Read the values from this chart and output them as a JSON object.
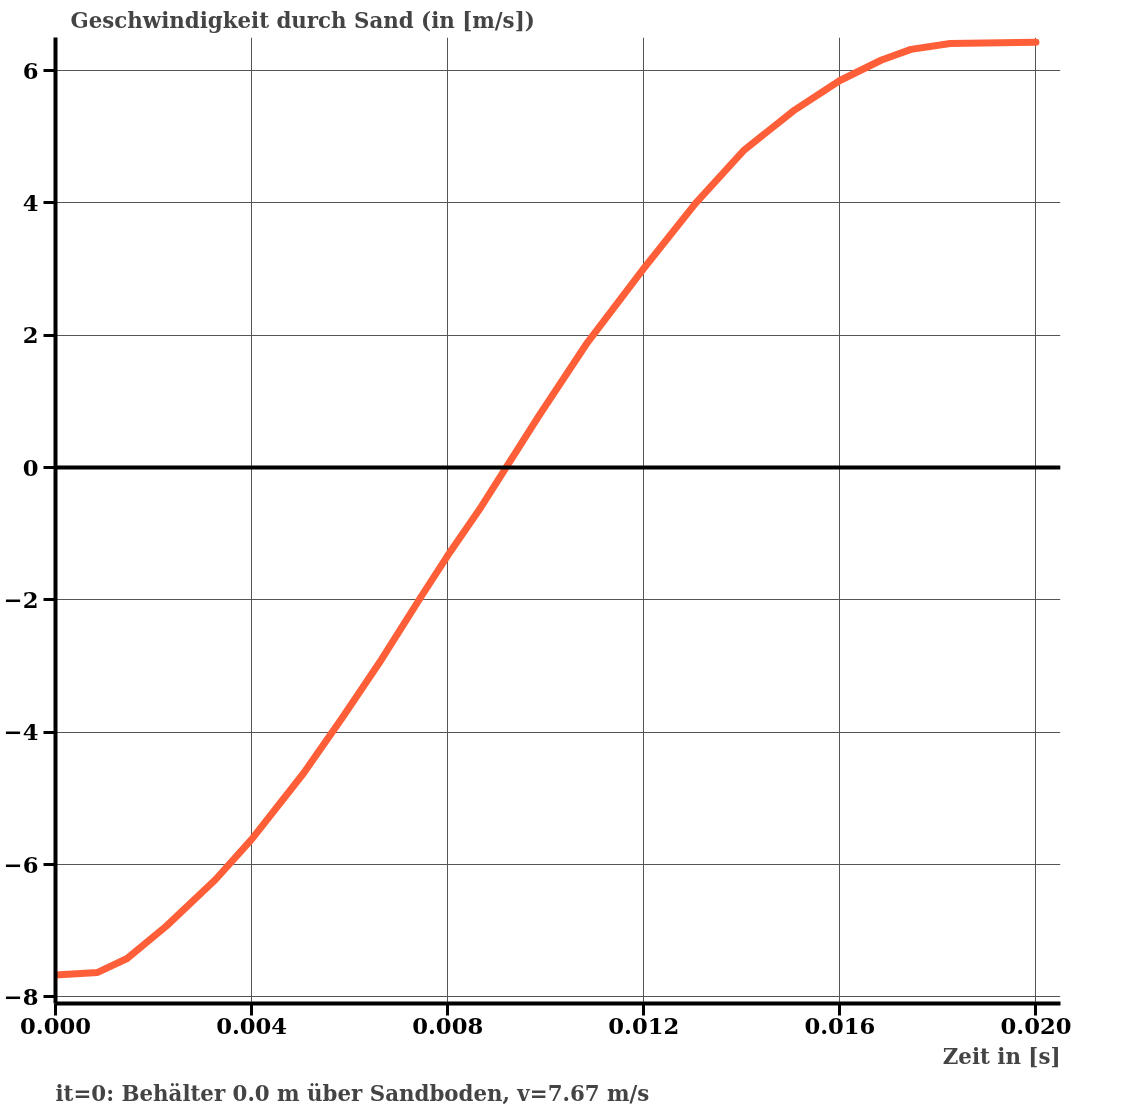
{
  "chart_data": {
    "type": "line",
    "title": "Geschwindigkeit durch Sand (in [m/s])",
    "xlabel": "Zeit in [s]",
    "annotations": [
      "it=0: Behälter 0.0 m über Sandboden, v=7.67 m/s"
    ],
    "x": [
      0,
      0.00086,
      0.00146,
      0.00226,
      0.00326,
      0.004,
      0.00506,
      0.00585,
      0.00665,
      0.00745,
      0.008,
      0.00865,
      0.00919,
      0.00985,
      0.01085,
      0.012,
      0.01305,
      0.01405,
      0.01505,
      0.016,
      0.01685,
      0.01745,
      0.01825,
      0.02
    ],
    "series": [
      {
        "color": "#ff5f38",
        "values": [
          -7.67,
          -7.63,
          -7.42,
          -6.93,
          -6.23,
          -5.62,
          -4.62,
          -3.78,
          -2.9,
          -1.96,
          -1.33,
          -0.63,
          0,
          0.77,
          1.89,
          3.01,
          3.99,
          4.8,
          5.39,
          5.85,
          6.16,
          6.32,
          6.41,
          6.43
        ]
      }
    ],
    "xlim": [
      0,
      0.0205
    ],
    "ylim": [
      -8.1,
      6.5
    ],
    "xticks": [
      {
        "value": 0,
        "label": "0.000"
      },
      {
        "value": 0.004,
        "label": "0.004"
      },
      {
        "value": 0.008,
        "label": "0.008"
      },
      {
        "value": 0.012,
        "label": "0.012"
      },
      {
        "value": 0.016,
        "label": "0.016"
      },
      {
        "value": 0.02,
        "label": "0.020"
      }
    ],
    "yticks": [
      -8,
      -6,
      -4,
      -2,
      0,
      2,
      4,
      6
    ],
    "grid": true,
    "marker": "none",
    "line_style": "solid",
    "ref_lines": [
      {
        "axis": "y",
        "value": 0,
        "color": "#000000"
      }
    ]
  }
}
